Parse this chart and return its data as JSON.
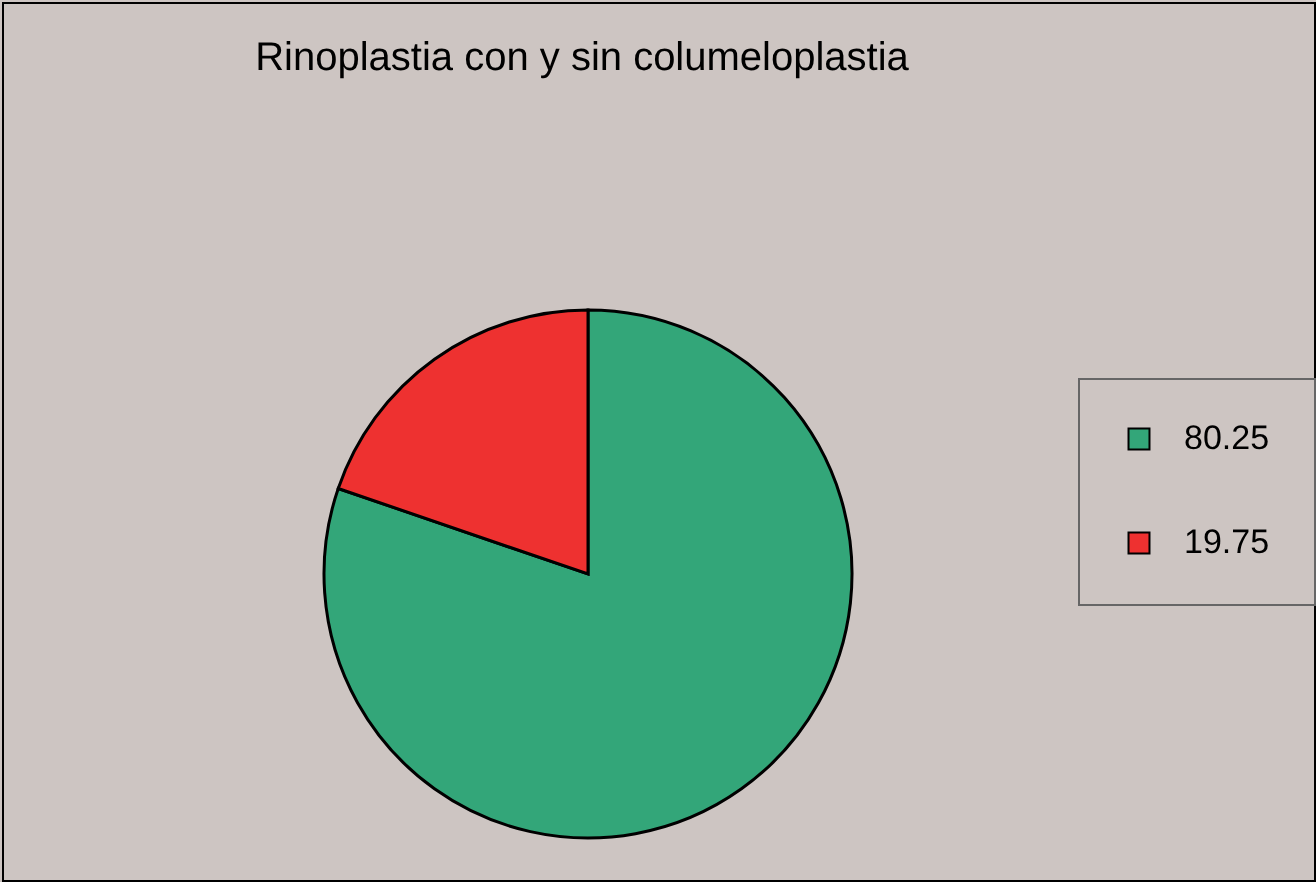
{
  "chart_data": {
    "type": "pie",
    "title": "Rinoplastia con y sin columeloplastia",
    "categories": [
      "80.25",
      "19.75"
    ],
    "values": [
      80.25,
      19.75
    ],
    "colors": [
      "#33a679",
      "#ee3130"
    ],
    "legend": "right"
  }
}
